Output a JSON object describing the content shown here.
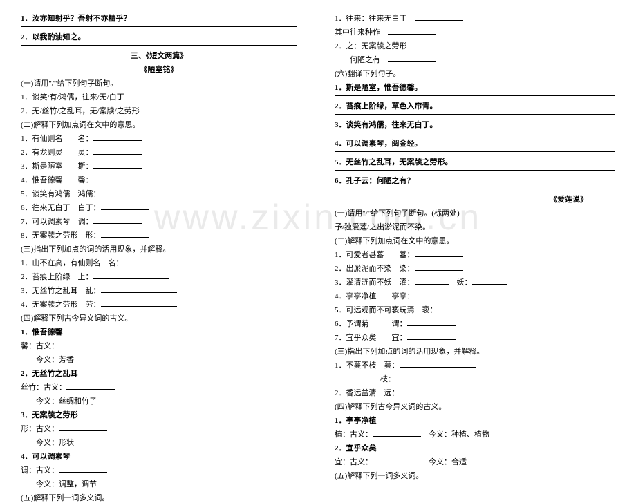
{
  "watermark": "www.zixin.com.cn",
  "left": {
    "q1": "1．汝亦知射乎？吾射不亦精乎？",
    "q2": "2．以我酌油知之。",
    "section_title": "三、《短文两篇》",
    "sub_title": "《陋室铭》",
    "p1_head": "(一)请用\"/\"给下列句子断句。",
    "p1_1": "1．谈笑/有/鸿儒，往来/无/白丁",
    "p1_2": "2．无/丝竹/之乱耳，无/案牍/之劳形",
    "p2_head": "(二)解释下列加点词在文中的意思。",
    "p2_1a": "1．有仙则名",
    "p2_1b": "名：",
    "p2_2a": "2．有龙则灵",
    "p2_2b": "灵：",
    "p2_3a": "3．斯是陋室",
    "p2_3b": "斯：",
    "p2_4a": "4．惟吾德馨",
    "p2_4b": "馨：",
    "p2_5a": "5．谈笑有鸿儒",
    "p2_5b": "鸿儒：",
    "p2_6a": "6．往来无白丁",
    "p2_6b": "白丁：",
    "p2_7a": "7．可以调素琴",
    "p2_7b": "调：",
    "p2_8a": "8．无案牍之劳形",
    "p2_8b": "形：",
    "p3_head": "(三)指出下列加点的词的活用现象，并解释。",
    "p3_1": "1．山不在高，有仙则名　名：",
    "p3_2": "2．苔痕上阶绿　上：",
    "p3_3": "3．无丝竹之乱耳　乱：",
    "p3_4": "4．无案牍之劳形　劳：",
    "p4_head": "(四)解释下列古今异义词的古义。",
    "p4_1": "1．惟吾德馨",
    "p4_1_xi": "馨：古义：",
    "p4_1_jin": "今义：芳香",
    "p4_2": "2．无丝竹之乱耳",
    "p4_2_si": "丝竹：古义：",
    "p4_2_jin": "今义：丝绸和竹子",
    "p4_3": "3．无案牍之劳形",
    "p4_3_xing": "形：古义：",
    "p4_3_jin": "今义：形状",
    "p4_4": "4．可以调素琴",
    "p4_4_tiao": "调：古义：",
    "p4_4_jin": "今义：调整，调节",
    "p5_head": "(五)解释下列一词多义词。"
  },
  "right": {
    "r1_1": "1．往来：往来无白丁",
    "r1_2": "其中往来种作",
    "r1_3a": "2．之：无案牍之劳形",
    "r1_3b": "何陋之有",
    "p6_head": "(六)翻译下列句子。",
    "p6_1": "1．斯是陋室，惟吾德馨。",
    "p6_2": "2．苔痕上阶绿，草色入帘青。",
    "p6_3": "3．谈笑有鸿儒，往来无白丁。",
    "p6_4": "4．可以调素琴，阅金经。",
    "p6_5": "5．无丝竹之乱耳，无案牍之劳形。",
    "p6_6": "6．孔子云：何陋之有？",
    "title2": "《爱莲说》",
    "q1_head": "(一)请用\"/\"给下列句子断句。(标两处)",
    "q1_1": "予/独爱莲/之出淤泥而不染。",
    "q2_head": "(二)解释下列加点词在文中的意思。",
    "q2_1a": "1．可爱者甚蕃",
    "q2_1b": "蕃：",
    "q2_2a": "2．出淤泥而不染",
    "q2_2b": "染：",
    "q2_3a": "3．濯清涟而不妖",
    "q2_3b": "濯：",
    "q2_3c": "妖：",
    "q2_4a": "4．亭亭净植",
    "q2_4b": "亭亭：",
    "q2_5a": "5．可远观而不可亵玩焉",
    "q2_5b": "亵：",
    "q2_6a": "6．予谓菊",
    "q2_6b": "谓：",
    "q2_7a": "7．宜乎众矣",
    "q2_7b": "宜：",
    "q3_head": "(三)指出下列加点的词的活用现象，并解释。",
    "q3_1a": "1．不蔓不枝　蔓：",
    "q3_1b": "枝：",
    "q3_2": "2．香远益清　远：",
    "q4_head": "(四)解释下列古今异义词的古义。",
    "q4_1": "1．亭亭净植",
    "q4_1_zhi_a": "植：古义：",
    "q4_1_zhi_b": "今义：种植、植物",
    "q4_2": "2．宜乎众矣",
    "q4_2_yi_a": "宜：古义：",
    "q4_2_yi_b": "今义：合适",
    "q5_head": "(五)解释下列一词多义词。"
  }
}
